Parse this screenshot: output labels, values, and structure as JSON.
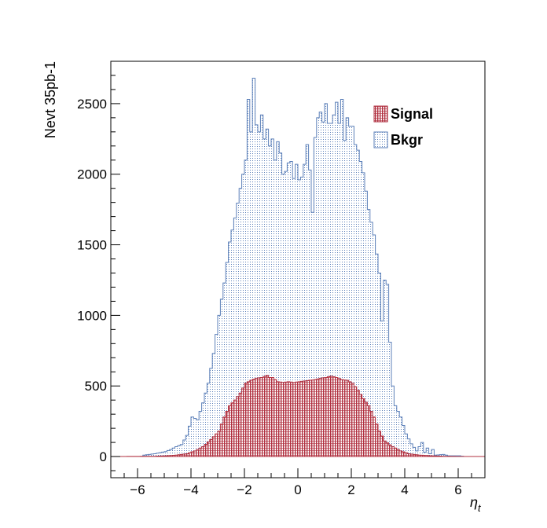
{
  "chart_data": {
    "type": "bar",
    "style": "step-histogram",
    "xlabel_symbol": "η",
    "xlabel_subscript": "t",
    "ylabel": "Nevt 35pb-1",
    "xlim": [
      -7,
      7
    ],
    "ylim": [
      -150,
      2800
    ],
    "xticks": [
      -6,
      -4,
      -2,
      0,
      2,
      4,
      6
    ],
    "xtick_labels": [
      "−6",
      "−4",
      "−2",
      "0",
      "2",
      "4",
      "6"
    ],
    "yticks": [
      0,
      500,
      1000,
      1500,
      2000,
      2500
    ],
    "ytick_labels": [
      "0",
      "500",
      "1000",
      "1500",
      "2000",
      "2500"
    ],
    "legend_position": "top-right",
    "grid": false,
    "bin_width": 0.1,
    "series": [
      {
        "name": "Bkgr",
        "color": "#5b7fb8",
        "fill": "dotted",
        "points": [
          [
            -7.0,
            0
          ],
          [
            -5.9,
            0
          ],
          [
            -5.8,
            10
          ],
          [
            -5.4,
            20
          ],
          [
            -5.0,
            35
          ],
          [
            -4.8,
            50
          ],
          [
            -4.6,
            70
          ],
          [
            -4.4,
            85
          ],
          [
            -4.2,
            150
          ],
          [
            -4.0,
            280
          ],
          [
            -3.8,
            260
          ],
          [
            -3.6,
            380
          ],
          [
            -3.4,
            520
          ],
          [
            -3.2,
            730
          ],
          [
            -3.0,
            1000
          ],
          [
            -2.8,
            1230
          ],
          [
            -2.6,
            1520
          ],
          [
            -2.4,
            1690
          ],
          [
            -2.2,
            1900
          ],
          [
            -2.0,
            2100
          ],
          [
            -1.9,
            2530
          ],
          [
            -1.8,
            2300
          ],
          [
            -1.7,
            2680
          ],
          [
            -1.6,
            2350
          ],
          [
            -1.5,
            2300
          ],
          [
            -1.4,
            2420
          ],
          [
            -1.3,
            2250
          ],
          [
            -1.2,
            2320
          ],
          [
            -1.1,
            2200
          ],
          [
            -1.0,
            2250
          ],
          [
            -0.9,
            2100
          ],
          [
            -0.8,
            2230
          ],
          [
            -0.7,
            2150
          ],
          [
            -0.6,
            2000
          ],
          [
            -0.5,
            2020
          ],
          [
            -0.4,
            2080
          ],
          [
            -0.3,
            2090
          ],
          [
            -0.2,
            1970
          ],
          [
            -0.1,
            2070
          ],
          [
            0.0,
            1960
          ],
          [
            0.1,
            1980
          ],
          [
            0.2,
            2070
          ],
          [
            0.3,
            2210
          ],
          [
            0.4,
            2030
          ],
          [
            0.5,
            1730
          ],
          [
            0.6,
            2260
          ],
          [
            0.7,
            2400
          ],
          [
            0.8,
            2440
          ],
          [
            0.9,
            2370
          ],
          [
            1.0,
            2500
          ],
          [
            1.1,
            2360
          ],
          [
            1.2,
            2360
          ],
          [
            1.3,
            2420
          ],
          [
            1.4,
            2510
          ],
          [
            1.5,
            2360
          ],
          [
            1.6,
            2530
          ],
          [
            1.7,
            2240
          ],
          [
            1.8,
            2400
          ],
          [
            1.9,
            2340
          ],
          [
            2.0,
            2340
          ],
          [
            2.1,
            2210
          ],
          [
            2.2,
            2170
          ],
          [
            2.4,
            2010
          ],
          [
            2.6,
            1750
          ],
          [
            2.8,
            1570
          ],
          [
            3.0,
            1300
          ],
          [
            3.1,
            960
          ],
          [
            3.2,
            1250
          ],
          [
            3.3,
            1220
          ],
          [
            3.4,
            810
          ],
          [
            3.5,
            500
          ],
          [
            3.6,
            360
          ],
          [
            3.8,
            280
          ],
          [
            4.0,
            160
          ],
          [
            4.2,
            90
          ],
          [
            4.4,
            40
          ],
          [
            4.6,
            100
          ],
          [
            4.7,
            30
          ],
          [
            4.8,
            60
          ],
          [
            4.9,
            20
          ],
          [
            5.0,
            50
          ],
          [
            5.1,
            10
          ],
          [
            5.4,
            15
          ],
          [
            5.6,
            5
          ],
          [
            6.0,
            5
          ],
          [
            6.2,
            0
          ],
          [
            7.0,
            0
          ]
        ]
      },
      {
        "name": "Signal",
        "color": "#b03040",
        "fill": "cross-hatched",
        "points": [
          [
            -7.0,
            0
          ],
          [
            -5.4,
            2
          ],
          [
            -5.0,
            5
          ],
          [
            -4.6,
            10
          ],
          [
            -4.2,
            20
          ],
          [
            -3.9,
            40
          ],
          [
            -3.6,
            70
          ],
          [
            -3.3,
            120
          ],
          [
            -3.0,
            180
          ],
          [
            -2.8,
            280
          ],
          [
            -2.6,
            360
          ],
          [
            -2.4,
            400
          ],
          [
            -2.2,
            450
          ],
          [
            -2.0,
            520
          ],
          [
            -1.8,
            540
          ],
          [
            -1.6,
            555
          ],
          [
            -1.4,
            560
          ],
          [
            -1.2,
            575
          ],
          [
            -1.1,
            560
          ],
          [
            -1.0,
            560
          ],
          [
            -0.9,
            545
          ],
          [
            -0.8,
            530
          ],
          [
            -0.6,
            525
          ],
          [
            -0.4,
            530
          ],
          [
            -0.2,
            525
          ],
          [
            0.0,
            530
          ],
          [
            0.2,
            535
          ],
          [
            0.4,
            540
          ],
          [
            0.6,
            545
          ],
          [
            0.8,
            555
          ],
          [
            1.0,
            560
          ],
          [
            1.2,
            570
          ],
          [
            1.4,
            560
          ],
          [
            1.6,
            545
          ],
          [
            1.8,
            540
          ],
          [
            2.0,
            520
          ],
          [
            2.2,
            470
          ],
          [
            2.4,
            410
          ],
          [
            2.6,
            360
          ],
          [
            2.8,
            280
          ],
          [
            3.0,
            180
          ],
          [
            3.2,
            110
          ],
          [
            3.5,
            70
          ],
          [
            3.8,
            40
          ],
          [
            4.1,
            20
          ],
          [
            4.5,
            10
          ],
          [
            5.0,
            5
          ],
          [
            5.4,
            2
          ],
          [
            6.0,
            0
          ],
          [
            7.0,
            0
          ]
        ]
      }
    ]
  }
}
